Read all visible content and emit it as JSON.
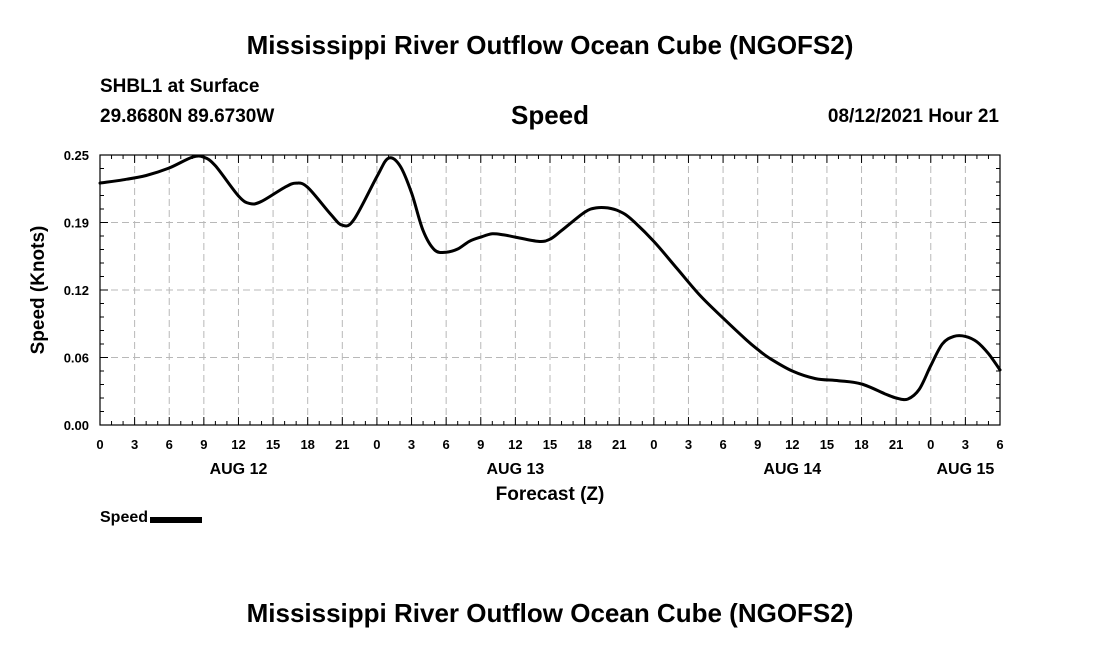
{
  "header": {
    "title": "Mississippi River Outflow Ocean Cube (NGOFS2)",
    "station": "SHBL1 at Surface",
    "coords": "29.8680N  89.6730W",
    "variable": "Speed",
    "timestamp": "08/12/2021 Hour 21"
  },
  "footer": {
    "title": "Mississippi River Outflow Ocean Cube (NGOFS2)"
  },
  "legend": {
    "label": "Speed",
    "color": "#000000"
  },
  "chart_data": {
    "type": "line",
    "title": "Speed",
    "xlabel": "Forecast (Z)",
    "ylabel": "Speed (Knots)",
    "xlim": [
      0,
      78
    ],
    "ylim": [
      0,
      0.25
    ],
    "y_ticks": [
      {
        "value": 0.0,
        "label": "0.00"
      },
      {
        "value": 0.0625,
        "label": "0.06"
      },
      {
        "value": 0.125,
        "label": "0.12"
      },
      {
        "value": 0.1875,
        "label": "0.19"
      },
      {
        "value": 0.25,
        "label": "0.25"
      }
    ],
    "x_ticks": [
      {
        "value": 0,
        "label": "0"
      },
      {
        "value": 3,
        "label": "3"
      },
      {
        "value": 6,
        "label": "6"
      },
      {
        "value": 9,
        "label": "9"
      },
      {
        "value": 12,
        "label": "12"
      },
      {
        "value": 15,
        "label": "15"
      },
      {
        "value": 18,
        "label": "18"
      },
      {
        "value": 21,
        "label": "21"
      },
      {
        "value": 24,
        "label": "0"
      },
      {
        "value": 27,
        "label": "3"
      },
      {
        "value": 30,
        "label": "6"
      },
      {
        "value": 33,
        "label": "9"
      },
      {
        "value": 36,
        "label": "12"
      },
      {
        "value": 39,
        "label": "15"
      },
      {
        "value": 42,
        "label": "18"
      },
      {
        "value": 45,
        "label": "21"
      },
      {
        "value": 48,
        "label": "0"
      },
      {
        "value": 51,
        "label": "3"
      },
      {
        "value": 54,
        "label": "6"
      },
      {
        "value": 57,
        "label": "9"
      },
      {
        "value": 60,
        "label": "12"
      },
      {
        "value": 63,
        "label": "15"
      },
      {
        "value": 66,
        "label": "18"
      },
      {
        "value": 69,
        "label": "21"
      },
      {
        "value": 72,
        "label": "0"
      },
      {
        "value": 75,
        "label": "3"
      },
      {
        "value": 78,
        "label": "6"
      }
    ],
    "day_labels": [
      {
        "value": 12,
        "label": "AUG 12"
      },
      {
        "value": 36,
        "label": "AUG 13"
      },
      {
        "value": 60,
        "label": "AUG 14"
      },
      {
        "value": 75,
        "label": "AUG 15"
      }
    ],
    "grid": true,
    "series": [
      {
        "name": "Speed",
        "x": [
          0,
          2,
          4,
          6,
          8,
          9,
          10,
          12,
          13,
          14,
          16,
          17,
          18,
          20,
          21,
          22,
          24,
          25,
          26,
          27,
          28,
          29,
          30,
          31,
          32,
          33,
          34,
          35,
          36,
          38,
          39,
          40,
          42,
          43,
          44,
          45,
          46,
          48,
          50,
          52,
          54,
          56,
          57,
          58,
          60,
          62,
          64,
          66,
          68,
          69,
          70,
          71,
          72,
          73,
          74,
          75,
          76,
          77,
          78
        ],
        "y": [
          0.224,
          0.227,
          0.231,
          0.238,
          0.248,
          0.248,
          0.24,
          0.212,
          0.205,
          0.207,
          0.22,
          0.224,
          0.22,
          0.195,
          0.185,
          0.19,
          0.23,
          0.247,
          0.24,
          0.215,
          0.18,
          0.162,
          0.16,
          0.163,
          0.17,
          0.174,
          0.177,
          0.176,
          0.174,
          0.17,
          0.172,
          0.18,
          0.197,
          0.201,
          0.201,
          0.198,
          0.191,
          0.17,
          0.145,
          0.12,
          0.099,
          0.079,
          0.07,
          0.062,
          0.05,
          0.043,
          0.041,
          0.038,
          0.029,
          0.025,
          0.024,
          0.033,
          0.055,
          0.075,
          0.082,
          0.082,
          0.077,
          0.066,
          0.051
        ]
      }
    ],
    "legend": "bottom-left"
  }
}
